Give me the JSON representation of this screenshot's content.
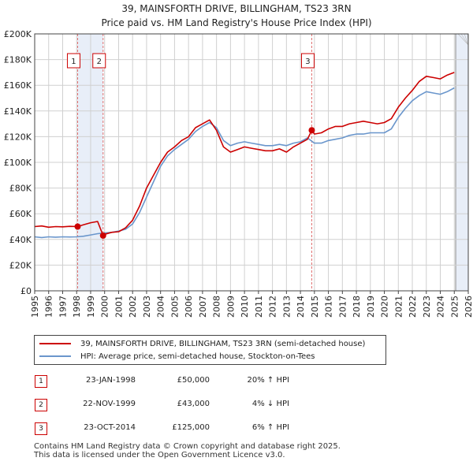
{
  "chart_data": {
    "type": "line",
    "title": "39, MAINSFORTH DRIVE, BILLINGHAM, TS23 3RN",
    "subtitle": "Price paid vs. HM Land Registry's House Price Index (HPI)",
    "xlabel": "",
    "ylabel": "",
    "xlim": [
      1995,
      2026
    ],
    "ylim": [
      0,
      200000
    ],
    "y_ticks": [
      {
        "value": 0,
        "label": "£0"
      },
      {
        "value": 20000,
        "label": "£20K"
      },
      {
        "value": 40000,
        "label": "£40K"
      },
      {
        "value": 60000,
        "label": "£60K"
      },
      {
        "value": 80000,
        "label": "£80K"
      },
      {
        "value": 100000,
        "label": "£100K"
      },
      {
        "value": 120000,
        "label": "£120K"
      },
      {
        "value": 140000,
        "label": "£140K"
      },
      {
        "value": 160000,
        "label": "£160K"
      },
      {
        "value": 180000,
        "label": "£180K"
      },
      {
        "value": 200000,
        "label": "£200K"
      }
    ],
    "x_ticks": [
      "1995",
      "1996",
      "1997",
      "1998",
      "1999",
      "2000",
      "2001",
      "2002",
      "2003",
      "2004",
      "2005",
      "2006",
      "2007",
      "2008",
      "2009",
      "2010",
      "2011",
      "2012",
      "2013",
      "2014",
      "2015",
      "2016",
      "2017",
      "2018",
      "2019",
      "2020",
      "2021",
      "2022",
      "2023",
      "2024",
      "2025",
      "2026"
    ],
    "grid": true,
    "series": [
      {
        "name": "39, MAINSFORTH DRIVE, BILLINGHAM, TS23 3RN (semi-detached house)",
        "color": "#cc0000",
        "x": [
          1995.0,
          1995.5,
          1996.0,
          1996.5,
          1997.0,
          1997.5,
          1998.07,
          1998.5,
          1999.0,
          1999.5,
          1999.89,
          2000.0,
          2000.5,
          2001.0,
          2001.5,
          2002.0,
          2002.5,
          2003.0,
          2003.5,
          2004.0,
          2004.5,
          2005.0,
          2005.5,
          2006.0,
          2006.5,
          2007.0,
          2007.5,
          2008.0,
          2008.5,
          2009.0,
          2009.5,
          2010.0,
          2010.5,
          2011.0,
          2011.5,
          2012.0,
          2012.5,
          2013.0,
          2013.5,
          2014.0,
          2014.5,
          2014.81,
          2015.0,
          2015.5,
          2016.0,
          2016.5,
          2017.0,
          2017.5,
          2018.0,
          2018.5,
          2019.0,
          2019.5,
          2020.0,
          2020.5,
          2021.0,
          2021.5,
          2022.0,
          2022.5,
          2023.0,
          2023.5,
          2024.0,
          2024.5,
          2025.0
        ],
        "values": [
          50000,
          50500,
          49500,
          50000,
          49800,
          50200,
          50000,
          51500,
          53000,
          54000,
          43000,
          44000,
          45500,
          46000,
          49000,
          55000,
          66000,
          80000,
          90000,
          100000,
          108000,
          112000,
          117000,
          120000,
          127000,
          130000,
          133000,
          125000,
          112000,
          108000,
          110000,
          112000,
          111000,
          110000,
          109000,
          109000,
          110500,
          108000,
          112000,
          115000,
          118000,
          125000,
          122000,
          123000,
          126000,
          128000,
          128000,
          130000,
          131000,
          132000,
          131000,
          130000,
          131000,
          134000,
          143000,
          150000,
          156000,
          163000,
          167000,
          166000,
          165000,
          168000,
          170000
        ]
      },
      {
        "name": "HPI: Average price, semi-detached house, Stockton-on-Tees",
        "color": "#6a96cc",
        "x": [
          1995.0,
          1995.5,
          1996.0,
          1996.5,
          1997.0,
          1997.5,
          1998.0,
          1998.5,
          1999.0,
          1999.5,
          2000.0,
          2000.5,
          2001.0,
          2001.5,
          2002.0,
          2002.5,
          2003.0,
          2003.5,
          2004.0,
          2004.5,
          2005.0,
          2005.5,
          2006.0,
          2006.5,
          2007.0,
          2007.5,
          2008.0,
          2008.5,
          2009.0,
          2009.5,
          2010.0,
          2010.5,
          2011.0,
          2011.5,
          2012.0,
          2012.5,
          2013.0,
          2013.5,
          2014.0,
          2014.5,
          2015.0,
          2015.5,
          2016.0,
          2016.5,
          2017.0,
          2017.5,
          2018.0,
          2018.5,
          2019.0,
          2019.5,
          2020.0,
          2020.5,
          2021.0,
          2021.5,
          2022.0,
          2022.5,
          2023.0,
          2023.5,
          2024.0,
          2024.5,
          2025.0
        ],
        "values": [
          42000,
          41500,
          42000,
          41800,
          42000,
          41900,
          42000,
          42500,
          43500,
          44500,
          45000,
          45500,
          46500,
          48000,
          52000,
          61000,
          73000,
          85000,
          97000,
          105000,
          110000,
          114000,
          118000,
          124000,
          128000,
          131000,
          127000,
          117000,
          113000,
          115000,
          116000,
          115000,
          114000,
          113000,
          113000,
          114000,
          113000,
          115000,
          116000,
          119000,
          115000,
          115000,
          117000,
          118000,
          119000,
          121000,
          122000,
          122000,
          123000,
          123000,
          123000,
          126000,
          135000,
          142000,
          148000,
          152000,
          155000,
          154000,
          153000,
          155000,
          158000
        ]
      }
    ],
    "transactions": [
      {
        "num": "1",
        "x": 1998.07,
        "value": 50000
      },
      {
        "num": "2",
        "x": 1999.89,
        "value": 43000
      },
      {
        "num": "3",
        "x": 2014.81,
        "value": 125000
      }
    ]
  },
  "legend": {
    "property_label": "39, MAINSFORTH DRIVE, BILLINGHAM, TS23 3RN (semi-detached house)",
    "hpi_label": "HPI: Average price, semi-detached house, Stockton-on-Tees"
  },
  "table": [
    {
      "num": "1",
      "date": "23-JAN-1998",
      "price": "£50,000",
      "hpi": "20% ↑ HPI"
    },
    {
      "num": "2",
      "date": "22-NOV-1999",
      "price": "£43,000",
      "hpi": "4% ↓ HPI"
    },
    {
      "num": "3",
      "date": "23-OCT-2014",
      "price": "£125,000",
      "hpi": "6% ↑ HPI"
    }
  ],
  "footer": {
    "line1": "Contains HM Land Registry data © Crown copyright and database right 2025.",
    "line2": "This data is licensed under the Open Government Licence v3.0."
  },
  "colors": {
    "property": "#cc0000",
    "hpi": "#6a96cc",
    "grid": "#d0d0d0",
    "shade": "#e8eef8"
  }
}
